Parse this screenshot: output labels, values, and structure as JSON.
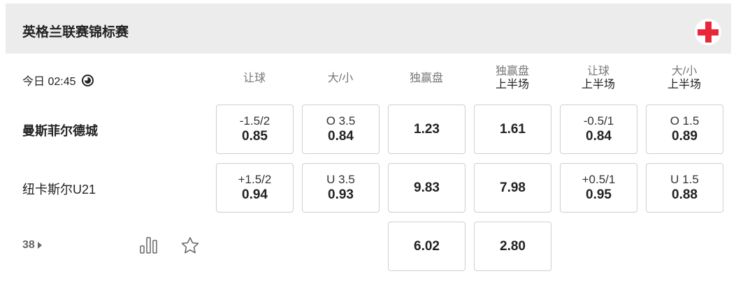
{
  "league": {
    "title": "英格兰联赛锦标赛",
    "icon": "red-cross-icon"
  },
  "match": {
    "time": "今日 02:45",
    "clock_icon": "clock-icon",
    "columns": [
      {
        "label": "让球"
      },
      {
        "label": "大/小"
      },
      {
        "label": "独赢盘"
      },
      {
        "label": "独赢盘",
        "sub": "上半场"
      },
      {
        "label": "让球",
        "sub": "上半场"
      },
      {
        "label": "大/小",
        "sub": "上半场"
      }
    ],
    "home": {
      "name": "曼斯菲尔德城",
      "odds": [
        {
          "line": "-1.5/2",
          "value": "0.85"
        },
        {
          "line": "O 3.5",
          "value": "0.84"
        },
        {
          "value": "1.23"
        },
        {
          "value": "1.61"
        },
        {
          "line": "-0.5/1",
          "value": "0.84"
        },
        {
          "line": "O 1.5",
          "value": "0.89"
        }
      ]
    },
    "away": {
      "name": "纽卡斯尔U21",
      "odds": [
        {
          "line": "+1.5/2",
          "value": "0.94"
        },
        {
          "line": "U 3.5",
          "value": "0.93"
        },
        {
          "value": "9.83"
        },
        {
          "value": "7.98"
        },
        {
          "line": "+0.5/1",
          "value": "0.95"
        },
        {
          "line": "U 1.5",
          "value": "0.88"
        }
      ]
    },
    "draw": {
      "odds": [
        {
          "value": "6.02"
        },
        {
          "value": "2.80"
        }
      ]
    },
    "more_count": "38"
  }
}
